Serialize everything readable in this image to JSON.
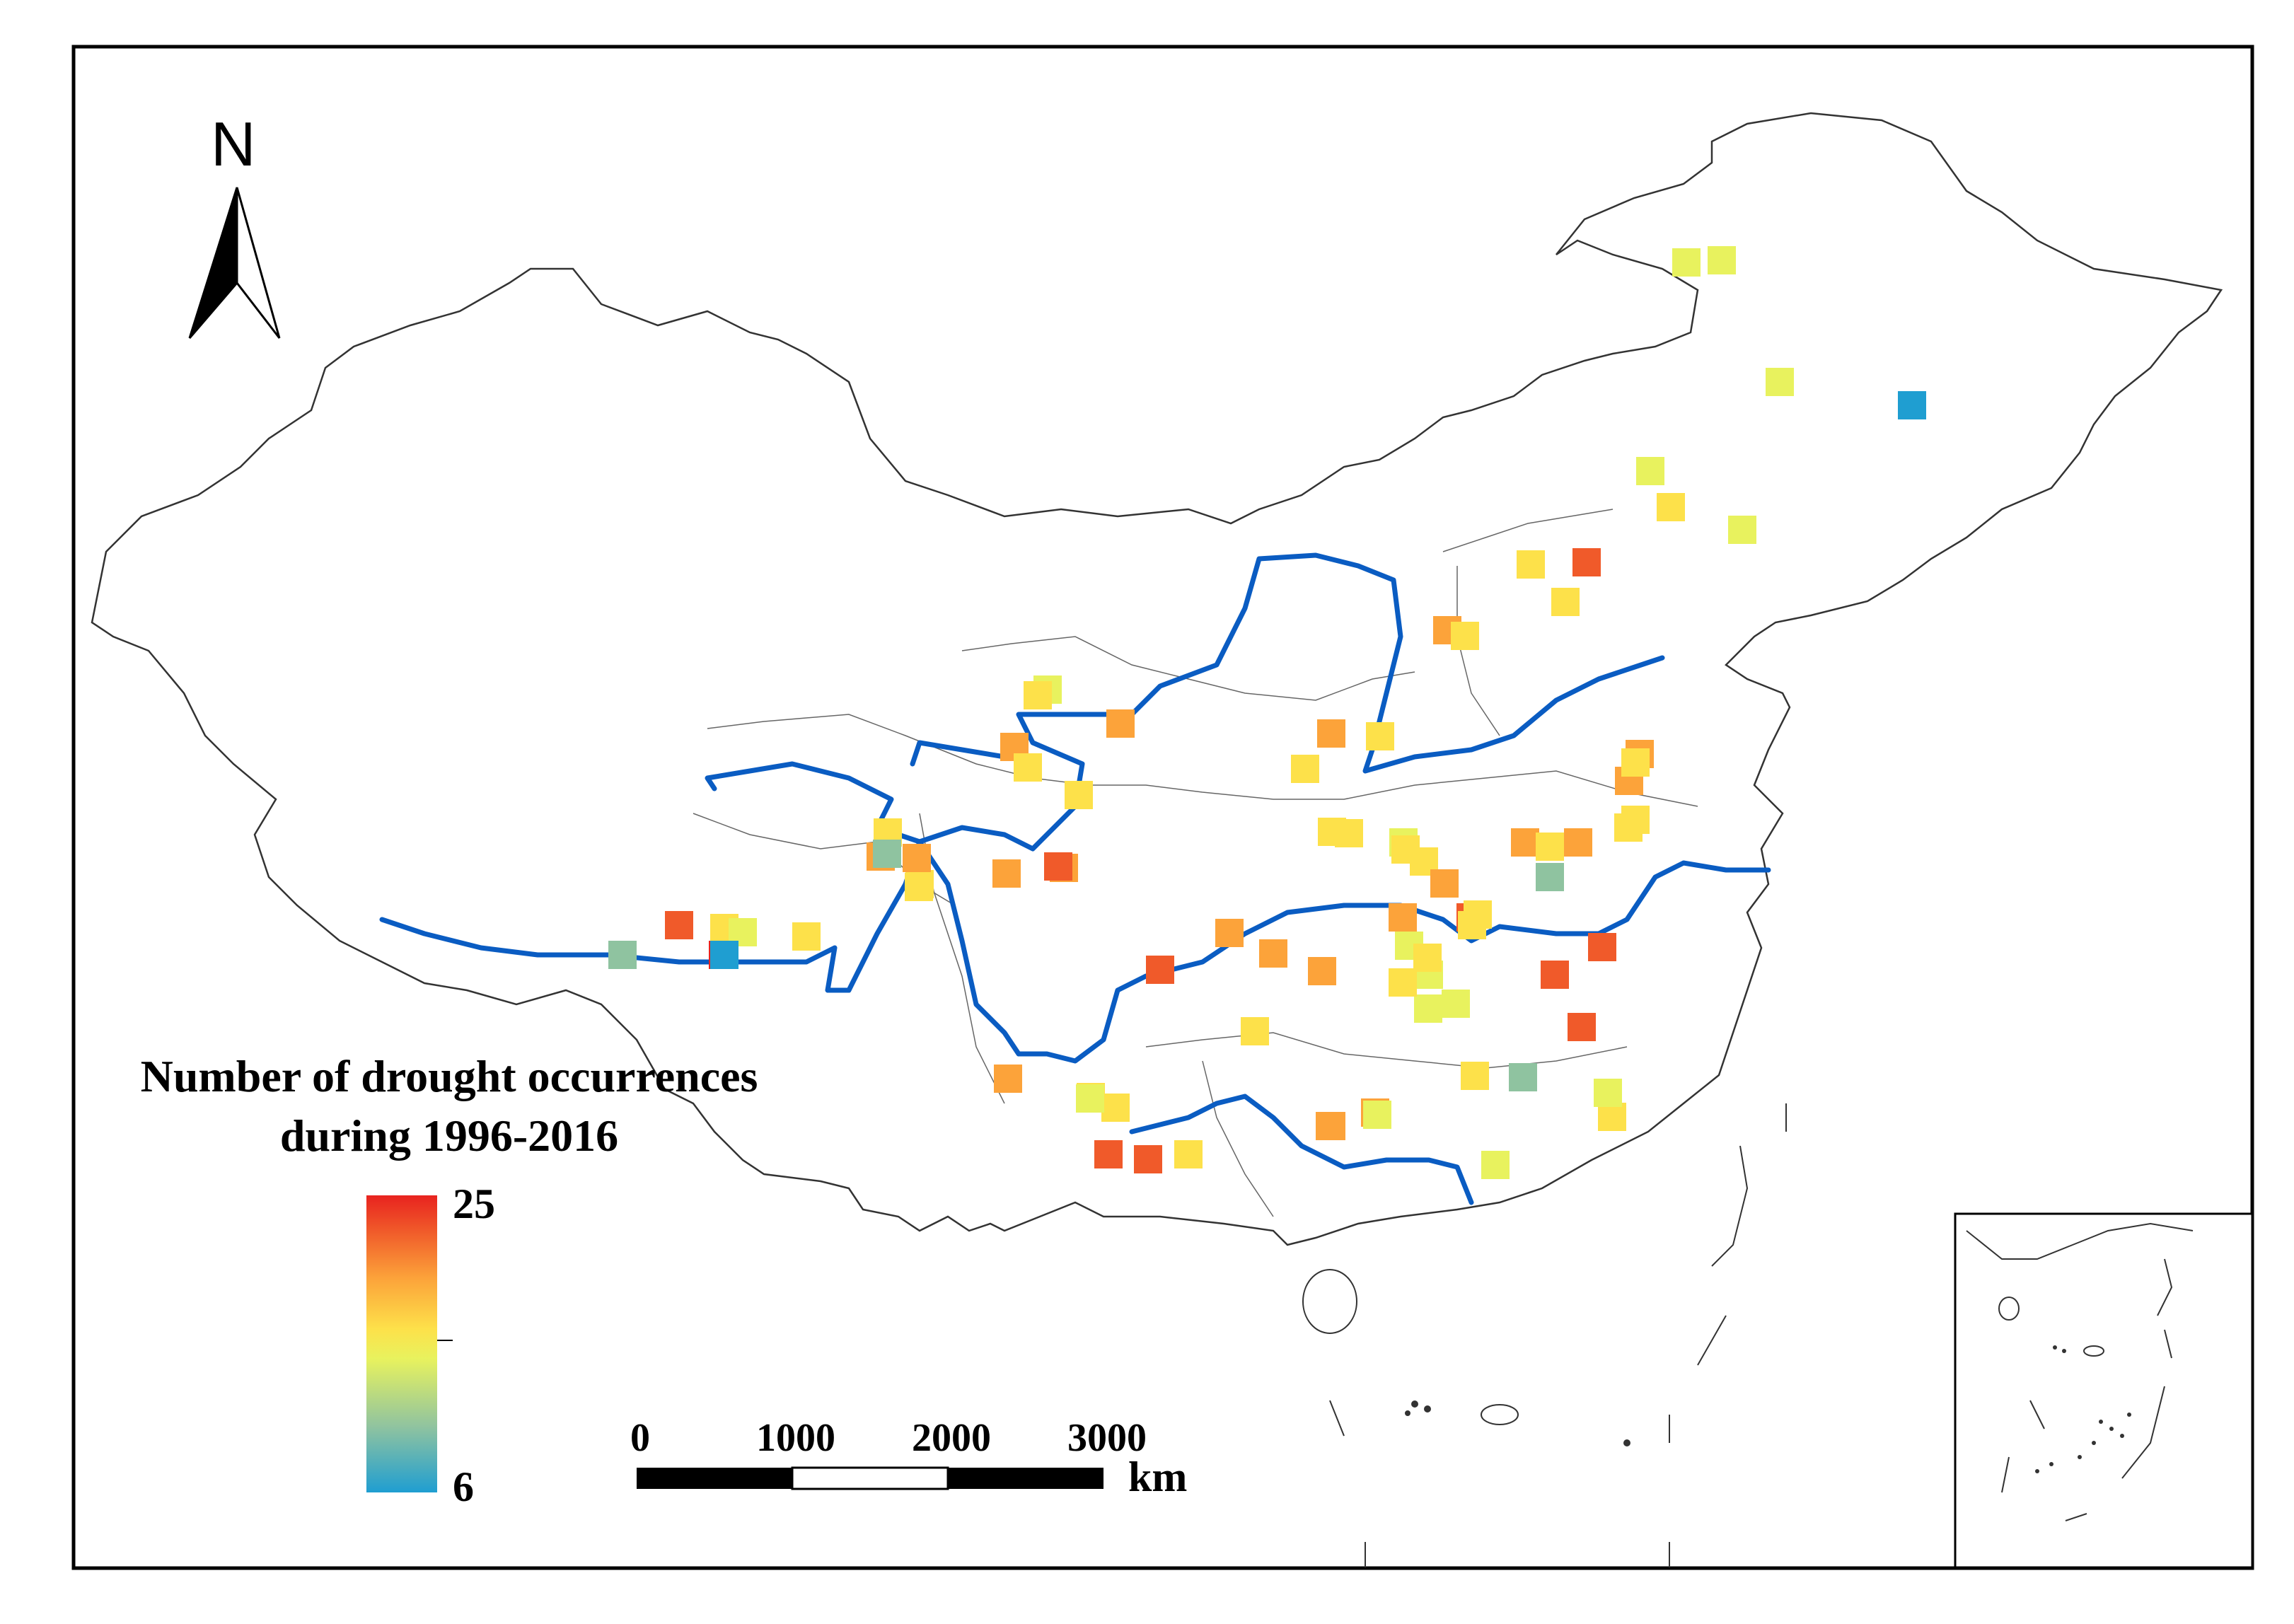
{
  "north_arrow": {
    "label": "N"
  },
  "legend": {
    "title_line1": "Number of drought occurrences",
    "title_line2": "during 1996-2016",
    "max_label": "25",
    "min_label": "6",
    "min_value": 6,
    "max_value": 25,
    "colors": [
      "#1f9ed1",
      "#8fc3a0",
      "#e8f25e",
      "#fde14a",
      "#fca33a",
      "#f05a2a",
      "#e8231f"
    ]
  },
  "scale_bar": {
    "ticks": [
      "0",
      "1000",
      "2000",
      "3000"
    ],
    "unit": "km"
  },
  "river_color": "#0a5cc2",
  "stations": [
    {
      "id": "s1",
      "v": 11
    },
    {
      "id": "s2",
      "v": 11
    },
    {
      "id": "s3",
      "v": 11
    },
    {
      "id": "s4",
      "v": 6
    },
    {
      "id": "s5",
      "v": 11
    },
    {
      "id": "s6",
      "v": 15
    },
    {
      "id": "s7",
      "v": 11
    },
    {
      "id": "s8",
      "v": 16
    },
    {
      "id": "s9",
      "v": 23
    },
    {
      "id": "s10",
      "v": 15
    },
    {
      "id": "s11",
      "v": 20
    },
    {
      "id": "s12",
      "v": 16
    },
    {
      "id": "s13",
      "v": 20
    },
    {
      "id": "s14",
      "v": 16
    },
    {
      "id": "s15",
      "v": 17
    },
    {
      "id": "s16",
      "v": 19
    },
    {
      "id": "s17",
      "v": 12
    },
    {
      "id": "s18",
      "v": 16
    },
    {
      "id": "s19",
      "v": 20
    },
    {
      "id": "s20",
      "v": 20
    },
    {
      "id": "s21",
      "v": 15
    },
    {
      "id": "s22",
      "v": 16
    },
    {
      "id": "s23",
      "v": 16
    },
    {
      "id": "s24",
      "v": 17
    },
    {
      "id": "s25",
      "v": 20
    },
    {
      "id": "s26",
      "v": 17
    },
    {
      "id": "s27",
      "v": 19
    },
    {
      "id": "s28",
      "v": 15
    },
    {
      "id": "s29",
      "v": 12
    },
    {
      "id": "s30",
      "v": 20
    },
    {
      "id": "s31",
      "v": 9
    },
    {
      "id": "s32",
      "v": 16
    },
    {
      "id": "s33",
      "v": 15
    },
    {
      "id": "s34",
      "v": 20
    },
    {
      "id": "s35",
      "v": 23
    },
    {
      "id": "s36",
      "v": 17
    },
    {
      "id": "s37",
      "v": 17
    },
    {
      "id": "s38",
      "v": 13
    },
    {
      "id": "s39",
      "v": 11
    },
    {
      "id": "s40",
      "v": 11
    },
    {
      "id": "s41",
      "v": 20
    },
    {
      "id": "s42",
      "v": 16
    },
    {
      "id": "s43",
      "v": 13
    },
    {
      "id": "s44",
      "v": 20
    },
    {
      "id": "s45",
      "v": 18
    },
    {
      "id": "s46",
      "v": 16
    },
    {
      "id": "s47",
      "v": 18
    },
    {
      "id": "s48",
      "v": 21
    },
    {
      "id": "s49",
      "v": 15
    },
    {
      "id": "s50",
      "v": 20
    },
    {
      "id": "s51",
      "v": 20
    },
    {
      "id": "s52",
      "v": 22
    },
    {
      "id": "s53",
      "v": 23
    },
    {
      "id": "s54",
      "v": 21
    },
    {
      "id": "s55",
      "v": 15
    },
    {
      "id": "s56",
      "v": 16
    },
    {
      "id": "s57",
      "v": 13
    },
    {
      "id": "s58",
      "v": 20
    },
    {
      "id": "s59",
      "v": 18
    },
    {
      "id": "s60",
      "v": 11
    },
    {
      "id": "s61",
      "v": 20
    },
    {
      "id": "s62",
      "v": 16
    },
    {
      "id": "s63",
      "v": 8
    },
    {
      "id": "s64",
      "v": 22
    },
    {
      "id": "s65",
      "v": 16
    },
    {
      "id": "s66",
      "v": 16
    },
    {
      "id": "s67",
      "v": 12
    },
    {
      "id": "s68",
      "v": 20
    },
    {
      "id": "s69",
      "v": 22
    },
    {
      "id": "s70",
      "v": 11
    },
    {
      "id": "s71",
      "v": 23
    },
    {
      "id": "s72",
      "v": 23
    },
    {
      "id": "s73",
      "v": 16
    },
    {
      "id": "s74",
      "v": 20
    },
    {
      "id": "s75",
      "v": 16
    },
    {
      "id": "s76",
      "v": 16
    },
    {
      "id": "s77",
      "v": 11
    },
    {
      "id": "s78",
      "v": 17
    },
    {
      "id": "s79",
      "v": 8
    },
    {
      "id": "s80",
      "v": 24
    },
    {
      "id": "s81",
      "v": 17
    },
    {
      "id": "s82",
      "v": 20
    },
    {
      "id": "s83",
      "v": 6
    },
    {
      "id": "s84",
      "v": 9
    },
    {
      "id": "s85",
      "v": 16
    },
    {
      "id": "s86",
      "v": 17
    }
  ]
}
